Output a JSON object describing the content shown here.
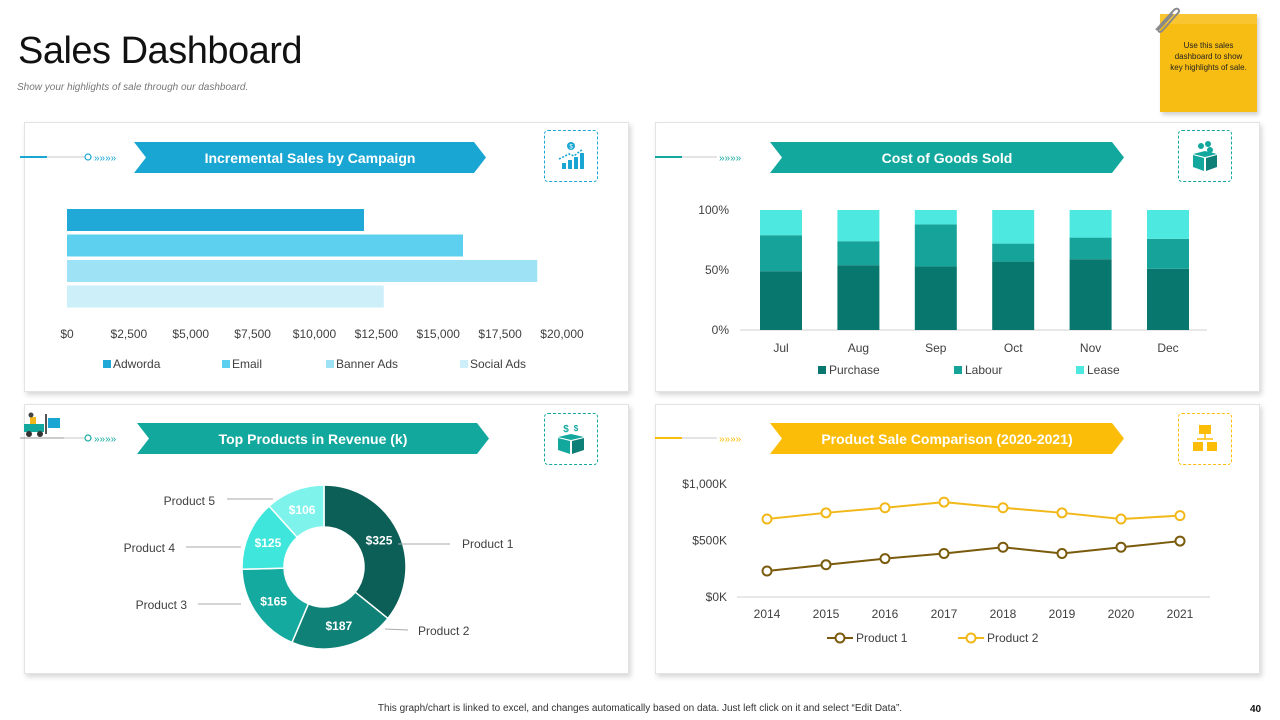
{
  "header": {
    "title": "Sales Dashboard",
    "subtitle": "Show your highlights of sale through our dashboard."
  },
  "note": {
    "text": "Use this sales dashboard to show key highlights of sale."
  },
  "footer": {
    "text": "This graph/chart is linked to excel, and changes automatically  based on data. Just left click on it and select “Edit Data”.",
    "page_number": "40"
  },
  "panels": {
    "campaign": {
      "title": "Incremental Sales by Campaign",
      "icon": "growth-chart-icon"
    },
    "cogs": {
      "title": "Cost of Goods Sold",
      "icon": "product-box-icon"
    },
    "products": {
      "title": "Top Products in Revenue (k)",
      "icon": "money-box-icon"
    },
    "comparison": {
      "title": "Product Sale Comparison (2020-2021)",
      "icon": "shipping-crates-icon"
    }
  },
  "colors": {
    "blue_banner": "#1aa6d3",
    "teal_banner": "#13a89e",
    "yellow_banner": "#fbbd08",
    "dark_teal": "#08786e",
    "mid_teal": "#15a39a",
    "light_teal": "#4de8e0",
    "product1": "#7a5a0c",
    "product2": "#f2b81a"
  },
  "chart_data": [
    {
      "type": "bar",
      "orientation": "horizontal",
      "title": "Incremental Sales by Campaign",
      "categories": [
        "Adworda",
        "Email",
        "Banner Ads",
        "Social Ads"
      ],
      "values": [
        12000,
        16000,
        19000,
        12800
      ],
      "colors": [
        "#20a9d6",
        "#5cd0ee",
        "#9de2f5",
        "#cdeff9"
      ],
      "xlim": [
        0,
        20000
      ],
      "xticks": [
        "$0",
        "$2,500",
        "$5,000",
        "$7,500",
        "$10,000",
        "$12,500",
        "$15,000",
        "$17,500",
        "$20,000"
      ],
      "legend": "bottom"
    },
    {
      "type": "bar",
      "stacked": "percent",
      "title": "Cost of Goods Sold",
      "categories": [
        "Jul",
        "Aug",
        "Sep",
        "Oct",
        "Nov",
        "Dec"
      ],
      "series": [
        {
          "name": "Purchase",
          "values": [
            49,
            54,
            53,
            57,
            59,
            51
          ],
          "color": "#08786e"
        },
        {
          "name": "Labour",
          "values": [
            30,
            20,
            35,
            15,
            18,
            25
          ],
          "color": "#15a39a"
        },
        {
          "name": "Lease",
          "values": [
            21,
            26,
            12,
            28,
            23,
            24
          ],
          "color": "#4de8e0"
        }
      ],
      "yticks": [
        "0%",
        "50%",
        "100%"
      ],
      "legend": "bottom"
    },
    {
      "type": "pie",
      "donut": true,
      "title": "Top Products in Revenue (k)",
      "categories": [
        "Product 1",
        "Product 2",
        "Product 3",
        "Product 4",
        "Product 5"
      ],
      "values": [
        325,
        187,
        165,
        125,
        106
      ],
      "labels": [
        "$325",
        "$187",
        "$165",
        "$125",
        "$106"
      ],
      "colors": [
        "#0b5f57",
        "#0f8177",
        "#14aaa0",
        "#3ee6dc",
        "#7ef3ec"
      ]
    },
    {
      "type": "line",
      "title": "Product Sale Comparison (2020-2021)",
      "x": [
        "2014",
        "2015",
        "2016",
        "2017",
        "2018",
        "2019",
        "2020",
        "2021"
      ],
      "series": [
        {
          "name": "Product 1",
          "values": [
            230,
            285,
            340,
            385,
            440,
            385,
            440,
            495
          ],
          "color": "#7a5a0c"
        },
        {
          "name": "Product 2",
          "values": [
            690,
            745,
            790,
            840,
            790,
            745,
            690,
            720
          ],
          "color": "#f2b81a"
        }
      ],
      "ylim": [
        0,
        1000
      ],
      "yticks": [
        "$0K",
        "$500K",
        "$1,000K"
      ],
      "legend": "bottom"
    }
  ]
}
